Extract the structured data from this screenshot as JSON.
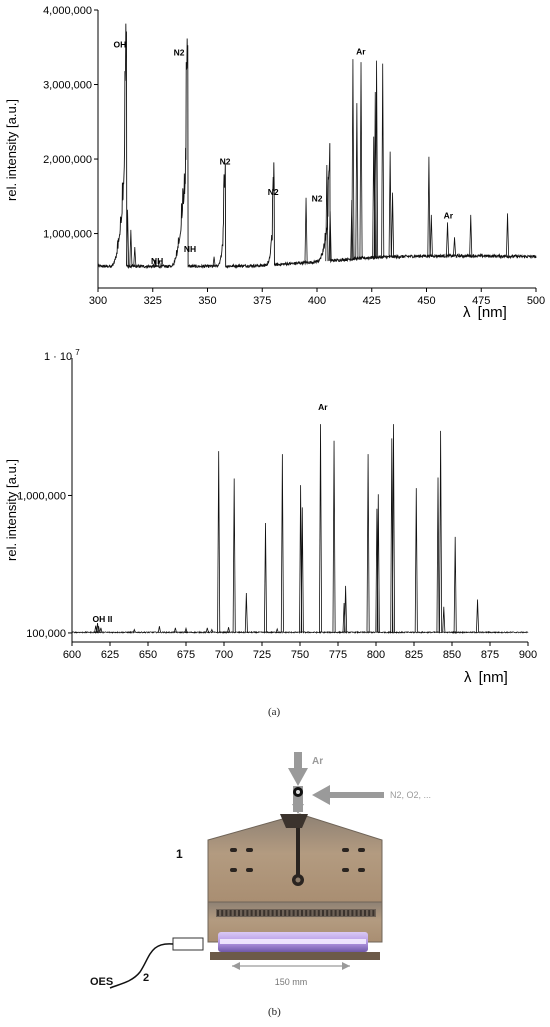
{
  "chart_data": [
    {
      "type": "line",
      "ylabel": "rel. intensity [a.u.]",
      "xlabel_symbol": "λ",
      "xlabel_unit": "[nm]",
      "xlim": [
        300,
        500
      ],
      "ylim": [
        350000,
        4000000
      ],
      "x_ticks": [
        "300",
        "325",
        "350",
        "375",
        "400",
        "425",
        "450",
        "475",
        "500"
      ],
      "y_ticks": [
        {
          "v": 1000000,
          "label": "1,000,000"
        },
        {
          "v": 2000000,
          "label": "2,000,000"
        },
        {
          "v": 3000000,
          "label": "3,000,000"
        },
        {
          "v": 4000000,
          "label": "4,000,000"
        }
      ],
      "annotations": [
        {
          "text": "OH",
          "x": 310,
          "y": 3500000
        },
        {
          "text": "N2",
          "x": 337,
          "y": 3390000
        },
        {
          "text": "NH",
          "x": 327,
          "y": 590000
        },
        {
          "text": "NH",
          "x": 342,
          "y": 750000
        },
        {
          "text": "N2",
          "x": 358,
          "y": 1930000
        },
        {
          "text": "N2",
          "x": 380,
          "y": 1520000
        },
        {
          "text": "N2",
          "x": 400,
          "y": 1430000
        },
        {
          "text": "Ar",
          "x": 420,
          "y": 3400000
        },
        {
          "text": "Ar",
          "x": 460,
          "y": 1200000
        }
      ],
      "baseline": [
        [
          300,
          560000
        ],
        [
          350,
          560000
        ],
        [
          375,
          570000
        ],
        [
          400,
          620000
        ],
        [
          425,
          680000
        ],
        [
          450,
          700000
        ],
        [
          475,
          700000
        ],
        [
          500,
          690000
        ]
      ],
      "bands": [
        {
          "x0": 306,
          "x1": 313,
          "peak": 3360000
        },
        {
          "x0": 333,
          "x1": 341,
          "peak": 3280000
        },
        {
          "x0": 355,
          "x1": 358.2,
          "peak": 1850000
        },
        {
          "x0": 377,
          "x1": 380.5,
          "peak": 1680000
        },
        {
          "x0": 400,
          "x1": 405.9,
          "peak": 1900000
        }
      ],
      "lines": [
        [
          313.5,
          1320000
        ],
        [
          315,
          1050000
        ],
        [
          316.8,
          820000
        ],
        [
          326,
          650000
        ],
        [
          328,
          640000
        ],
        [
          353,
          690000
        ],
        [
          395,
          1480000
        ],
        [
          404.5,
          1920000
        ],
        [
          406,
          1300000
        ],
        [
          415.9,
          1450000
        ],
        [
          416.4,
          3340000
        ],
        [
          418.2,
          2750000
        ],
        [
          420.1,
          3300000
        ],
        [
          425.9,
          2300000
        ],
        [
          426.6,
          2900000
        ],
        [
          427.2,
          3320000
        ],
        [
          430,
          3280000
        ],
        [
          433.4,
          2100000
        ],
        [
          434.5,
          1550000
        ],
        [
          451.1,
          2030000
        ],
        [
          452.2,
          1250000
        ],
        [
          459.6,
          1150000
        ],
        [
          462.8,
          950000
        ],
        [
          470.2,
          1250000
        ],
        [
          487,
          1270000
        ]
      ]
    },
    {
      "type": "line",
      "ylabel": "rel. intensity [a.u.]",
      "y_top_label": "1 · 10",
      "y_top_exp": "7",
      "xlabel_symbol": "λ",
      "xlabel_unit": "[nm]",
      "xlim": [
        600,
        900
      ],
      "ylim": [
        95000,
        10000000
      ],
      "log_y": true,
      "x_ticks": [
        "600",
        "625",
        "650",
        "675",
        "700",
        "725",
        "750",
        "775",
        "800",
        "825",
        "850",
        "875",
        "900"
      ],
      "y_ticks": [
        {
          "v": 100000,
          "label": "100,000"
        },
        {
          "v": 1000000,
          "label": "1,000,000"
        }
      ],
      "annotations": [
        {
          "text": "OH II",
          "x": 620,
          "y": 120000
        },
        {
          "text": "Ar",
          "x": 765,
          "y": 4200000
        }
      ],
      "baseline_value": 101000,
      "lines": [
        [
          615.6,
          113000
        ],
        [
          616.8,
          118000
        ],
        [
          617.5,
          112000
        ],
        [
          619,
          109000
        ],
        [
          641,
          106000
        ],
        [
          657.5,
          112000
        ],
        [
          668,
          109000
        ],
        [
          675,
          108000
        ],
        [
          689,
          109000
        ],
        [
          696.5,
          2100000
        ],
        [
          703,
          110000
        ],
        [
          706.7,
          1330000
        ],
        [
          714.7,
          195000
        ],
        [
          727.3,
          630000
        ],
        [
          738.4,
          2000000
        ],
        [
          750.4,
          1190000
        ],
        [
          751.5,
          820000
        ],
        [
          763.5,
          3300000
        ],
        [
          772.4,
          2500000
        ],
        [
          794.8,
          2000000
        ],
        [
          800.6,
          800000
        ],
        [
          801.5,
          1020000
        ],
        [
          810.4,
          2600000
        ],
        [
          811.5,
          3300000
        ],
        [
          826.5,
          1130000
        ],
        [
          840.8,
          1350000
        ],
        [
          842.5,
          2950000
        ],
        [
          852.1,
          500000
        ],
        [
          866.8,
          175000
        ],
        [
          779,
          165000
        ],
        [
          780,
          220000
        ],
        [
          844.6,
          155000
        ],
        [
          735,
          107000
        ],
        [
          692,
          106000
        ]
      ]
    }
  ],
  "captions": {
    "a": "(a)",
    "b": "(b)"
  },
  "photo": {
    "gas_in_label": "Ar",
    "gas_side_label": "N2, O2, ...",
    "device_number": "1",
    "oes_label": "OES",
    "oes_number": "2",
    "scale_label": "150 mm",
    "colors": {
      "arrow": "#9a9a9a",
      "plate": "#b09a80",
      "plasma": "#b79be6"
    }
  }
}
